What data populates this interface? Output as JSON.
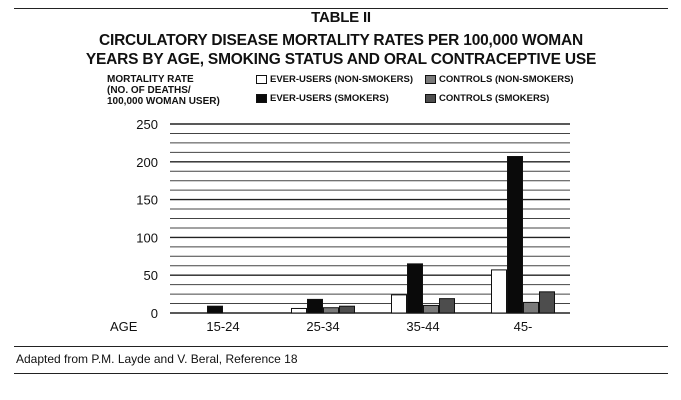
{
  "chart_data": {
    "type": "bar",
    "title": "TABLE II",
    "subtitle": [
      "CIRCULATORY DISEASE MORTALITY RATES PER 100,000 WOMAN",
      "YEARS BY AGE, SMOKING STATUS AND ORAL CONTRACEPTIVE USE"
    ],
    "ylabel": [
      "MORTALITY RATE",
      "(NO. OF DEATHS/",
      "100,000 WOMAN USER)"
    ],
    "xlabel": "AGE",
    "categories": [
      "15-24",
      "25-34",
      "35-44",
      "45-"
    ],
    "ylim": [
      0,
      250
    ],
    "yticks": [
      "250",
      "200",
      "150",
      "100",
      "50",
      "0"
    ],
    "grid": true,
    "legend_position": "top-right",
    "series": [
      {
        "name": "EVER-USERS (NON-SMOKERS)",
        "color": "#ffffff",
        "values": [
          0,
          6,
          24,
          57
        ]
      },
      {
        "name": "EVER-USERS (SMOKERS)",
        "color": "#0a0a0a",
        "values": [
          9,
          18,
          65,
          207
        ]
      },
      {
        "name": "CONTROLS (NON-SMOKERS)",
        "color": "#7a7a7a",
        "values": [
          0,
          7,
          10,
          14
        ]
      },
      {
        "name": "CONTROLS (SMOKERS)",
        "color": "#4d4d4d",
        "values": [
          0,
          9,
          19,
          28
        ]
      }
    ]
  },
  "source": "Adapted from P.M. Layde and V. Beral, Reference 18"
}
